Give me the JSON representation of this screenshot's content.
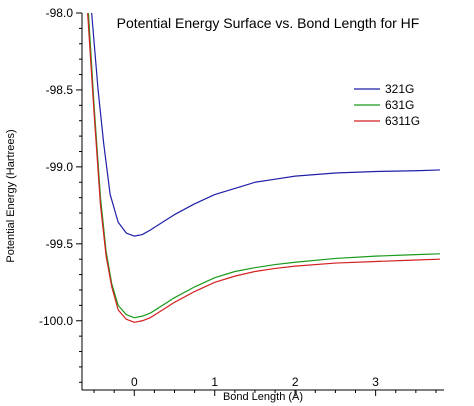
{
  "chart_data": {
    "type": "line",
    "title": "Potential Energy Surface vs. Bond Length for HF",
    "xlabel": "Bond Length (Å)",
    "ylabel": "Potential Energy (Hartrees)",
    "xlim": [
      -0.65,
      3.85
    ],
    "ylim": [
      -100.45,
      -98.0
    ],
    "x_ticks": [
      0,
      1,
      2,
      3
    ],
    "x_tick_labels": [
      "0",
      "1",
      "2",
      "3"
    ],
    "y_ticks": [
      -98.0,
      -98.5,
      -99.0,
      -99.5,
      -100.0
    ],
    "y_tick_labels": [
      "-98.0",
      "-98.5",
      "-99.0",
      "-99.5",
      "-100.0"
    ],
    "grid": false,
    "legend_position": "top-right",
    "series": [
      {
        "name": "321G",
        "color": "#1f1fa8",
        "points": [
          [
            -0.53,
            -98.0
          ],
          [
            -0.45,
            -98.5
          ],
          [
            -0.38,
            -98.85
          ],
          [
            -0.3,
            -99.18
          ],
          [
            -0.2,
            -99.36
          ],
          [
            -0.1,
            -99.43
          ],
          [
            0.0,
            -99.45
          ],
          [
            0.1,
            -99.44
          ],
          [
            0.2,
            -99.41
          ],
          [
            0.35,
            -99.36
          ],
          [
            0.5,
            -99.31
          ],
          [
            0.75,
            -99.24
          ],
          [
            1.0,
            -99.18
          ],
          [
            1.25,
            -99.14
          ],
          [
            1.5,
            -99.1
          ],
          [
            1.75,
            -99.08
          ],
          [
            2.0,
            -99.06
          ],
          [
            2.5,
            -99.04
          ],
          [
            3.0,
            -99.03
          ],
          [
            3.5,
            -99.025
          ],
          [
            3.8,
            -99.02
          ]
        ]
      },
      {
        "name": "631G",
        "color": "#1a9a1a",
        "points": [
          [
            -0.57,
            -98.0
          ],
          [
            -0.5,
            -98.6
          ],
          [
            -0.42,
            -99.2
          ],
          [
            -0.35,
            -99.55
          ],
          [
            -0.28,
            -99.76
          ],
          [
            -0.2,
            -99.9
          ],
          [
            -0.1,
            -99.96
          ],
          [
            0.0,
            -99.98
          ],
          [
            0.1,
            -99.97
          ],
          [
            0.2,
            -99.95
          ],
          [
            0.35,
            -99.9
          ],
          [
            0.5,
            -99.85
          ],
          [
            0.75,
            -99.78
          ],
          [
            1.0,
            -99.72
          ],
          [
            1.25,
            -99.68
          ],
          [
            1.5,
            -99.655
          ],
          [
            1.75,
            -99.635
          ],
          [
            2.0,
            -99.62
          ],
          [
            2.5,
            -99.595
          ],
          [
            3.0,
            -99.58
          ],
          [
            3.5,
            -99.57
          ],
          [
            3.8,
            -99.565
          ]
        ]
      },
      {
        "name": "6311G",
        "color": "#d42020",
        "points": [
          [
            -0.58,
            -98.0
          ],
          [
            -0.5,
            -98.65
          ],
          [
            -0.42,
            -99.25
          ],
          [
            -0.35,
            -99.58
          ],
          [
            -0.28,
            -99.78
          ],
          [
            -0.2,
            -99.93
          ],
          [
            -0.1,
            -99.99
          ],
          [
            0.0,
            -100.01
          ],
          [
            0.1,
            -100.0
          ],
          [
            0.2,
            -99.98
          ],
          [
            0.35,
            -99.93
          ],
          [
            0.5,
            -99.88
          ],
          [
            0.75,
            -99.81
          ],
          [
            1.0,
            -99.75
          ],
          [
            1.25,
            -99.71
          ],
          [
            1.5,
            -99.68
          ],
          [
            1.75,
            -99.66
          ],
          [
            2.0,
            -99.645
          ],
          [
            2.5,
            -99.625
          ],
          [
            3.0,
            -99.615
          ],
          [
            3.5,
            -99.605
          ],
          [
            3.8,
            -99.6
          ]
        ]
      }
    ]
  }
}
